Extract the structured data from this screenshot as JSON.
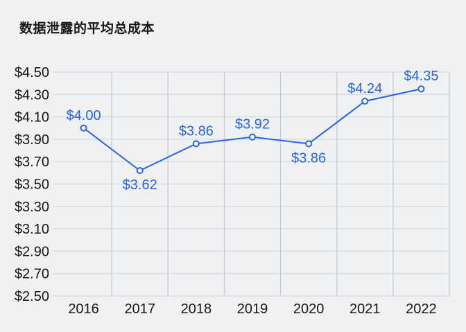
{
  "header": {
    "title": "数据泄露的平均总成本"
  },
  "chart_data": {
    "type": "line",
    "title": "数据泄露的平均总成本",
    "categories": [
      "2016",
      "2017",
      "2018",
      "2019",
      "2020",
      "2021",
      "2022"
    ],
    "values": [
      4.0,
      3.62,
      3.86,
      3.92,
      3.86,
      4.24,
      4.35
    ],
    "data_labels": [
      "$4.00",
      "$3.62",
      "$3.86",
      "$3.92",
      "$3.86",
      "$4.24",
      "$4.35"
    ],
    "label_positions": [
      "above",
      "below",
      "above",
      "above",
      "below",
      "above",
      "above"
    ],
    "xlabel": "",
    "ylabel": "",
    "ylim": [
      2.5,
      4.5
    ],
    "ytick_step": 0.2,
    "ytick_labels": [
      "$2.50",
      "$2.70",
      "$2.90",
      "$3.10",
      "$3.30",
      "$3.50",
      "$3.70",
      "$3.90",
      "$4.10",
      "$4.30",
      "$4.50"
    ],
    "grid": "on",
    "legend": "none",
    "marker": "open-circle",
    "colors": {
      "line": "#2563eb",
      "data_label": "#2563eb",
      "marker_fill": "#ffffff",
      "grid_h": "#d6d9dd",
      "grid_v": "#c9cdd3",
      "axis_text": "#161616",
      "background": "#f0f1f2"
    }
  }
}
